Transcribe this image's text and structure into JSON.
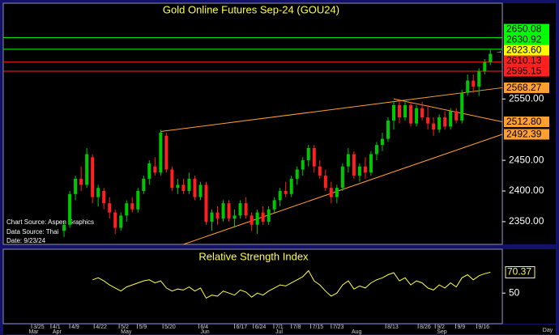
{
  "chart_data": {
    "type": "candlestick",
    "title": "Gold Online Futures Sep-24 (GOU24)",
    "source_lines": [
      "Chart Source: Aspen Graphics",
      "Data Source: Thai",
      "Date: 9/23/24"
    ],
    "up_color": "#00c800",
    "down_color": "#ff2020",
    "xlim": [
      -10.7,
      77.1
    ],
    "ylim": [
      2313,
      2706
    ],
    "yticks": [
      {
        "value": 2550,
        "label": "2550.00"
      },
      {
        "value": 2450,
        "label": "2450.00"
      },
      {
        "value": 2400,
        "label": "2400.00"
      },
      {
        "value": 2350,
        "label": "2350.00"
      }
    ],
    "xticks": [
      {
        "value": -5.7,
        "label": "3/25"
      },
      {
        "value": -2.3,
        "label": "4/1"
      },
      {
        "value": 1,
        "label": "4/9"
      },
      {
        "value": 5.3,
        "label": "4/22"
      },
      {
        "value": 9.7,
        "label": "5/2"
      },
      {
        "value": 12.9,
        "label": "5/9"
      },
      {
        "value": 17.4,
        "label": "5/20"
      },
      {
        "value": 23.7,
        "label": "6/4"
      },
      {
        "value": 30,
        "label": "6/17"
      },
      {
        "value": 33.3,
        "label": "6/24"
      },
      {
        "value": 36.9,
        "label": "7/1"
      },
      {
        "value": 40,
        "label": "7/8"
      },
      {
        "value": 43.4,
        "label": "7/15"
      },
      {
        "value": 47,
        "label": "7/23"
      },
      {
        "value": 56.6,
        "label": "8/13"
      },
      {
        "value": 62.3,
        "label": "8/26"
      },
      {
        "value": 65.3,
        "label": "9/2"
      },
      {
        "value": 68.9,
        "label": "9/9"
      },
      {
        "value": 72.6,
        "label": "9/16"
      }
    ],
    "months": [
      {
        "value": -6.5,
        "label": "Mar"
      },
      {
        "value": -2.3,
        "label": "Apr"
      },
      {
        "value": 9.7,
        "label": "May"
      },
      {
        "value": 23.7,
        "label": "Jun"
      },
      {
        "value": 36.9,
        "label": "Jul"
      },
      {
        "value": 50.3,
        "label": "Aug"
      },
      {
        "value": 65.3,
        "label": "Sep"
      }
    ],
    "period": "Day",
    "ohlc": [
      [
        2335,
        2350,
        2325,
        2345
      ],
      [
        2345,
        2400,
        2340,
        2395
      ],
      [
        2395,
        2425,
        2385,
        2420
      ],
      [
        2420,
        2440,
        2400,
        2410
      ],
      [
        2410,
        2470,
        2405,
        2460
      ],
      [
        2455,
        2460,
        2380,
        2390
      ],
      [
        2390,
        2410,
        2375,
        2405
      ],
      [
        2400,
        2405,
        2370,
        2380
      ],
      [
        2380,
        2390,
        2355,
        2365
      ],
      [
        2365,
        2370,
        2330,
        2340
      ],
      [
        2340,
        2365,
        2335,
        2360
      ],
      [
        2360,
        2385,
        2350,
        2380
      ],
      [
        2380,
        2390,
        2365,
        2370
      ],
      [
        2370,
        2405,
        2365,
        2400
      ],
      [
        2400,
        2425,
        2395,
        2420
      ],
      [
        2420,
        2450,
        2410,
        2445
      ],
      [
        2440,
        2455,
        2425,
        2430
      ],
      [
        2430,
        2500,
        2425,
        2495
      ],
      [
        2490,
        2495,
        2430,
        2435
      ],
      [
        2435,
        2440,
        2400,
        2405
      ],
      [
        2405,
        2420,
        2395,
        2410
      ],
      [
        2410,
        2420,
        2395,
        2400
      ],
      [
        2400,
        2430,
        2395,
        2420
      ],
      [
        2420,
        2425,
        2385,
        2390
      ],
      [
        2390,
        2415,
        2385,
        2410
      ],
      [
        2410,
        2415,
        2345,
        2350
      ],
      [
        2350,
        2370,
        2335,
        2365
      ],
      [
        2365,
        2375,
        2345,
        2355
      ],
      [
        2355,
        2385,
        2350,
        2380
      ],
      [
        2380,
        2385,
        2350,
        2355
      ],
      [
        2355,
        2370,
        2340,
        2360
      ],
      [
        2360,
        2385,
        2355,
        2380
      ],
      [
        2380,
        2390,
        2355,
        2360
      ],
      [
        2360,
        2365,
        2335,
        2345
      ],
      [
        2345,
        2370,
        2330,
        2365
      ],
      [
        2365,
        2375,
        2345,
        2350
      ],
      [
        2350,
        2375,
        2345,
        2370
      ],
      [
        2370,
        2390,
        2365,
        2385
      ],
      [
        2385,
        2405,
        2375,
        2400
      ],
      [
        2400,
        2415,
        2390,
        2395
      ],
      [
        2395,
        2425,
        2390,
        2420
      ],
      [
        2420,
        2440,
        2410,
        2435
      ],
      [
        2435,
        2455,
        2425,
        2450
      ],
      [
        2450,
        2475,
        2440,
        2470
      ],
      [
        2470,
        2475,
        2430,
        2440
      ],
      [
        2440,
        2450,
        2420,
        2425
      ],
      [
        2425,
        2435,
        2400,
        2405
      ],
      [
        2405,
        2415,
        2380,
        2390
      ],
      [
        2390,
        2410,
        2380,
        2405
      ],
      [
        2405,
        2445,
        2400,
        2440
      ],
      [
        2440,
        2470,
        2430,
        2460
      ],
      [
        2460,
        2465,
        2420,
        2425
      ],
      [
        2425,
        2445,
        2415,
        2440
      ],
      [
        2440,
        2455,
        2420,
        2430
      ],
      [
        2430,
        2465,
        2425,
        2460
      ],
      [
        2460,
        2480,
        2450,
        2475
      ],
      [
        2475,
        2495,
        2465,
        2485
      ],
      [
        2485,
        2520,
        2480,
        2515
      ],
      [
        2515,
        2545,
        2500,
        2540
      ],
      [
        2540,
        2550,
        2510,
        2520
      ],
      [
        2520,
        2545,
        2515,
        2540
      ],
      [
        2540,
        2545,
        2505,
        2510
      ],
      [
        2510,
        2540,
        2505,
        2535
      ],
      [
        2535,
        2545,
        2515,
        2520
      ],
      [
        2520,
        2540,
        2500,
        2510
      ],
      [
        2510,
        2520,
        2490,
        2500
      ],
      [
        2500,
        2525,
        2495,
        2520
      ],
      [
        2520,
        2530,
        2500,
        2505
      ],
      [
        2505,
        2535,
        2500,
        2530
      ],
      [
        2530,
        2535,
        2510,
        2515
      ],
      [
        2515,
        2565,
        2510,
        2560
      ],
      [
        2560,
        2590,
        2555,
        2580
      ],
      [
        2580,
        2590,
        2560,
        2570
      ],
      [
        2570,
        2600,
        2555,
        2595
      ],
      [
        2595,
        2615,
        2590,
        2610
      ],
      [
        2610,
        2630,
        2605,
        2623.6
      ]
    ],
    "levels": [
      {
        "value": 2650.08,
        "color": "#00ff00",
        "line": true
      },
      {
        "value": 2630.92,
        "color": "#00ff00",
        "line": true
      },
      {
        "value": 2623.6,
        "label": "2623.60",
        "color": "#ffff00",
        "line": false
      },
      {
        "value": 2610.13,
        "color": "#ff2020",
        "line": true
      },
      {
        "value": 2595.15,
        "color": "#ff2020",
        "line": true
      }
    ],
    "trendlines": [
      {
        "start": [
          17,
          2497
        ],
        "value": 2568.27,
        "label": "2568.27",
        "color": "#ffa030"
      },
      {
        "start": [
          58,
          2550
        ],
        "value": 2512.8,
        "label": "2512.80",
        "color": "#ffa030"
      },
      {
        "start": [
          21,
          2313
        ],
        "value": 2492.39,
        "label": "2492.39",
        "color": "#ffa030"
      }
    ],
    "rsi": {
      "title": "Relative Strength Index",
      "color": "#ffff40",
      "ylim": [
        20,
        93
      ],
      "yticks": [
        50
      ],
      "last_label": "70.37",
      "values": [
        null,
        null,
        null,
        null,
        null,
        63,
        65,
        62,
        58,
        55,
        52,
        56,
        58,
        60,
        62,
        63,
        60,
        62,
        55,
        52,
        54,
        53,
        56,
        52,
        55,
        45,
        48,
        47,
        52,
        50,
        48,
        53,
        51,
        46,
        50,
        48,
        52,
        55,
        58,
        57,
        60,
        63,
        66,
        72,
        62,
        58,
        52,
        47,
        50,
        58,
        62,
        54,
        57,
        55,
        60,
        63,
        65,
        68,
        70,
        62,
        65,
        58,
        62,
        60,
        55,
        53,
        58,
        55,
        60,
        56,
        65,
        68,
        63,
        67,
        69,
        70.37
      ]
    }
  }
}
